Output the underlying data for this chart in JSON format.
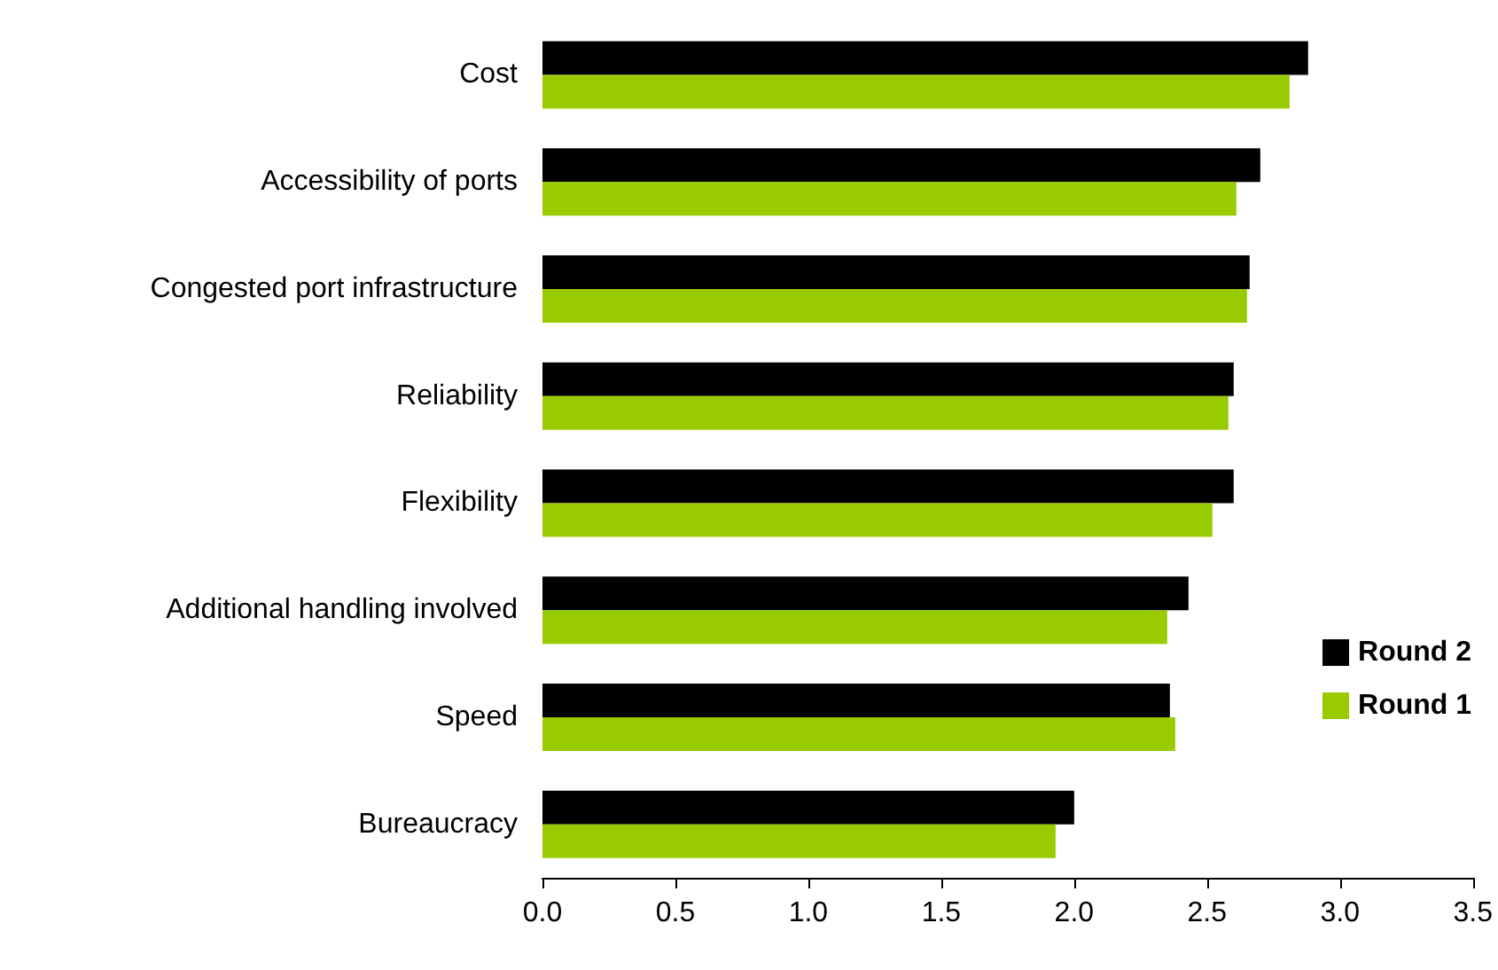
{
  "chart_data": {
    "type": "bar",
    "orientation": "horizontal",
    "categories": [
      "Cost",
      "Accessibility of ports",
      "Congested port infrastructure",
      "Reliability",
      "Flexibility",
      "Additional handling involved",
      "Speed",
      "Bureaucracy"
    ],
    "series": [
      {
        "name": "Round 2",
        "color": "#000000",
        "values": [
          2.88,
          2.7,
          2.66,
          2.6,
          2.6,
          2.43,
          2.36,
          2.0
        ]
      },
      {
        "name": "Round 1",
        "color": "#99cc00",
        "values": [
          2.81,
          2.61,
          2.65,
          2.58,
          2.52,
          2.35,
          2.38,
          1.93
        ]
      }
    ],
    "xlim": [
      0,
      3.5
    ],
    "xticks": [
      {
        "value": 0,
        "label": "0.0"
      },
      0.5,
      {
        "value": 1,
        "label": "1.0"
      },
      1.5,
      {
        "value": 2,
        "label": "2.0"
      },
      2.5,
      {
        "value": 3,
        "label": "3.0"
      },
      3.5
    ],
    "grid": false,
    "legend": "right"
  }
}
